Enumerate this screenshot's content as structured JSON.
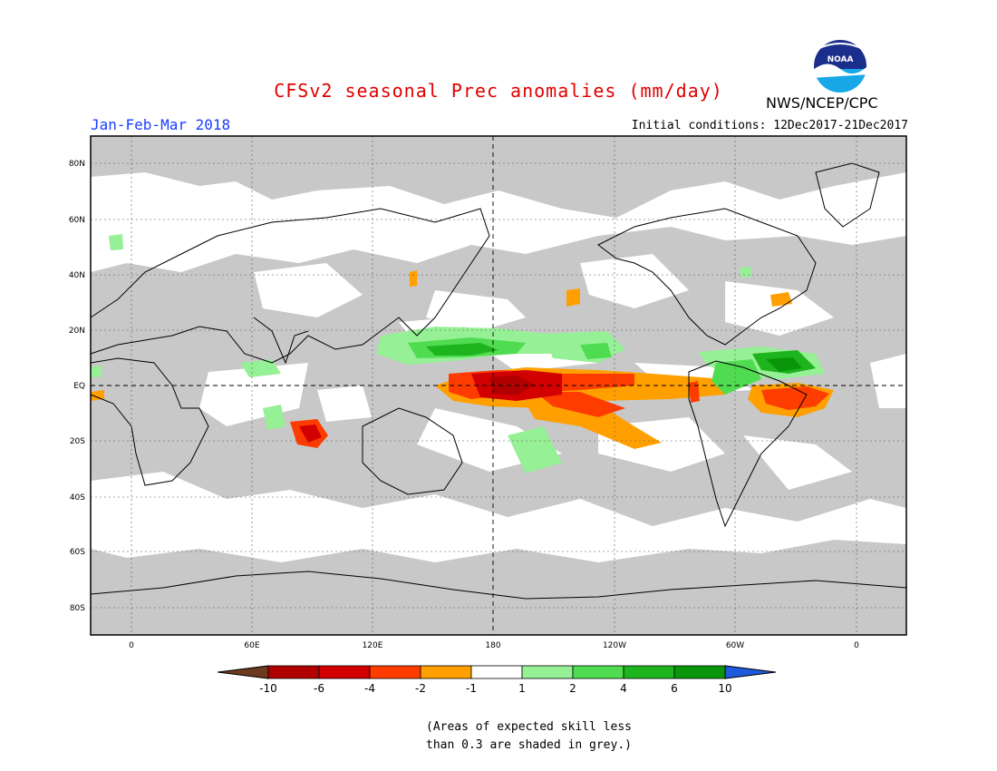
{
  "header": {
    "title": "CFSv2 seasonal Prec anomalies (mm/day)",
    "agency": "NWS/NCEP/CPC",
    "logo_text": "NOAA",
    "period": "Jan-Feb-Mar 2018",
    "initial_conditions": "Initial conditions: 12Dec2017-21Dec2017"
  },
  "map": {
    "lat_labels": [
      "80N",
      "60N",
      "40N",
      "20N",
      "EQ",
      "20S",
      "40S",
      "60S",
      "80S"
    ],
    "lon_labels": [
      "0",
      "60E",
      "120E",
      "180",
      "120W",
      "60W",
      "0"
    ],
    "colors": {
      "skill_mask_grey": "#c8c8c8",
      "ocean_land_base": "#ffffff",
      "coastline": "#000000"
    }
  },
  "colorbar": {
    "labels": [
      "-10",
      "-6",
      "-4",
      "-2",
      "-1",
      "1",
      "2",
      "4",
      "6",
      "10"
    ],
    "colors": [
      "#6b3a1f",
      "#b00000",
      "#d20000",
      "#ff3c00",
      "#ffa000",
      "#ffffff",
      "#96f096",
      "#50dc50",
      "#1eb41e",
      "#0a960a",
      "#1e5adc"
    ]
  },
  "note": {
    "line1": "(Areas of expected skill less",
    "line2": "than 0.3 are shaded in grey.)"
  }
}
